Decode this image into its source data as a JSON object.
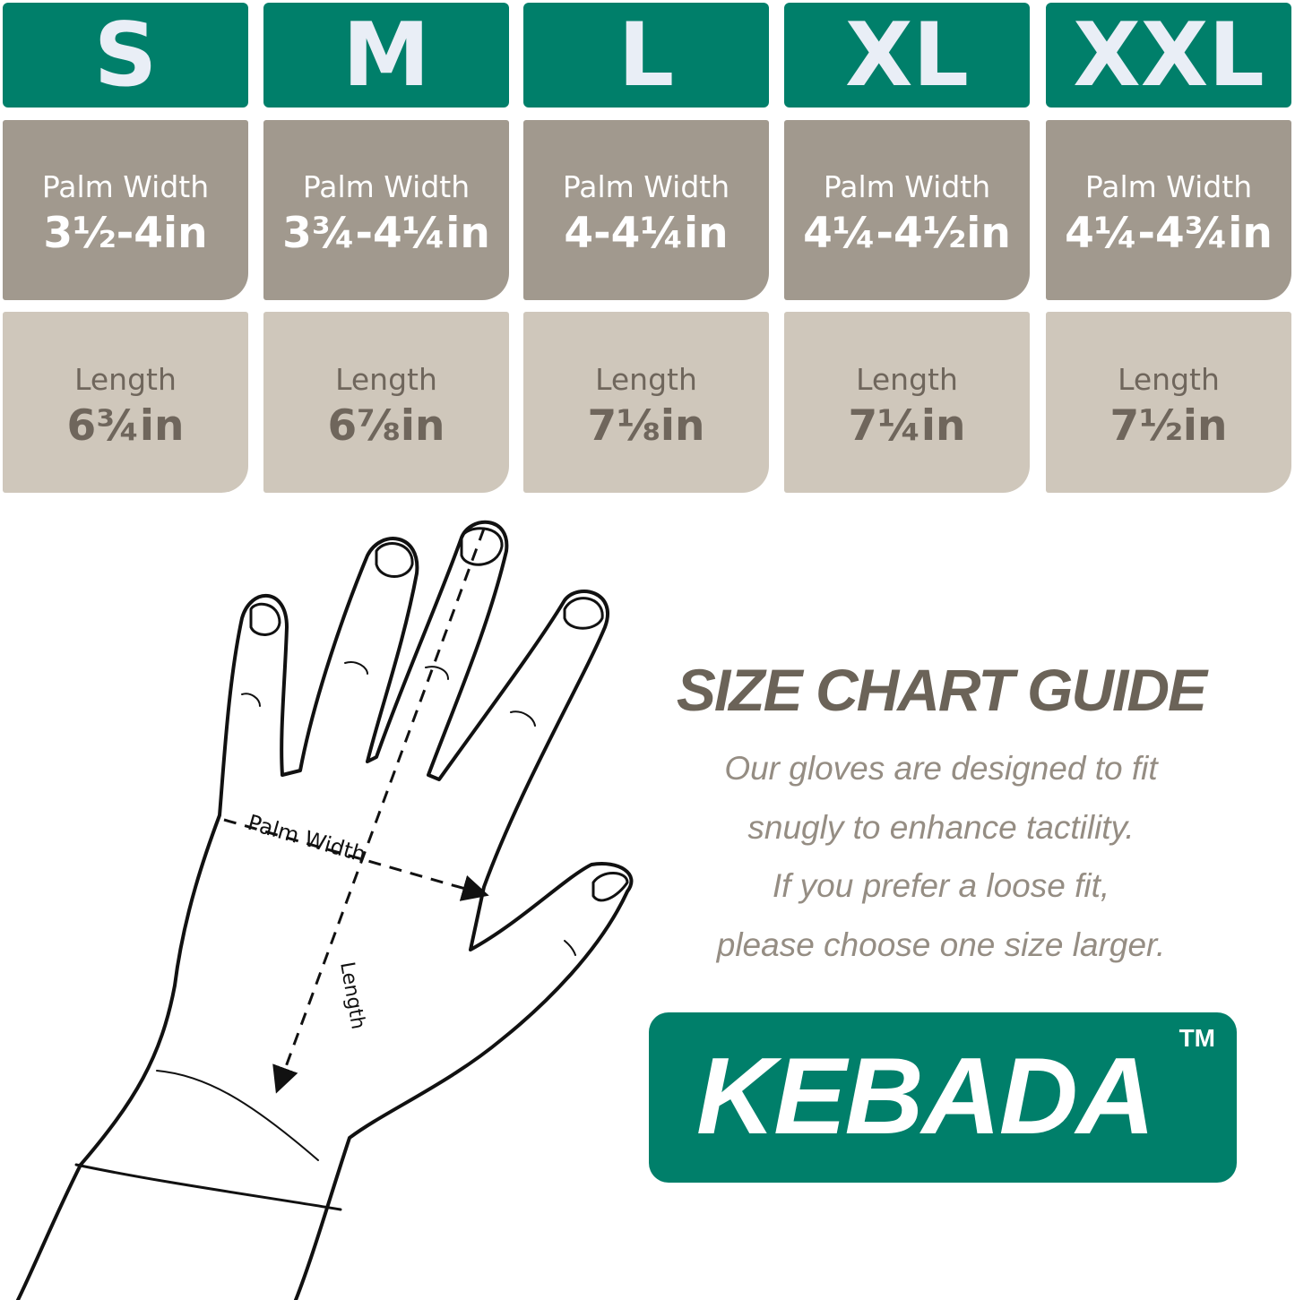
{
  "sizes": [
    {
      "size": "S",
      "palm_label": "Palm Width",
      "palm_value": "3½-4in",
      "length_label": "Length",
      "length_value": "6¾in"
    },
    {
      "size": "M",
      "palm_label": "Palm Width",
      "palm_value": "3¾-4¼in",
      "length_label": "Length",
      "length_value": "6⅞in"
    },
    {
      "size": "L",
      "palm_label": "Palm Width",
      "palm_value": "4-4¼in",
      "length_label": "Length",
      "length_value": "7⅛in"
    },
    {
      "size": "XL",
      "palm_label": "Palm Width",
      "palm_value": "4¼-4½in",
      "length_label": "Length",
      "length_value": "7¼in"
    },
    {
      "size": "XXL",
      "palm_label": "Palm Width",
      "palm_value": "4¼-4¾in",
      "length_label": "Length",
      "length_value": "7½in"
    }
  ],
  "diagram": {
    "palm_width_label": "Palm Width",
    "length_label": "Length"
  },
  "guide": {
    "title": "SIZE CHART GUIDE",
    "lines": [
      "Our gloves are designed to fit",
      "snugly to enhance tactility.",
      "If you prefer a loose fit,",
      "please choose one size larger."
    ]
  },
  "logo": {
    "text": "KEBADA",
    "trademark": "TM"
  },
  "colors": {
    "brand_teal": "#007f6a",
    "palm_gray": "#a1998e",
    "length_beige": "#cfc7bb",
    "text_brown": "#6b6358"
  }
}
